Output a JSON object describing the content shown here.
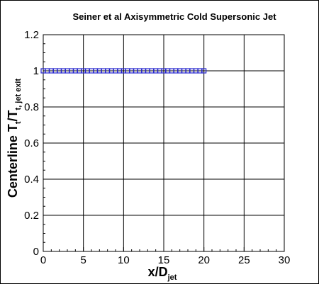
{
  "chart_data": {
    "type": "scatter",
    "title": "Seiner et al Axisymmetric Cold Supersonic Jet",
    "xlabel": {
      "main": "x/D",
      "sub": "jet"
    },
    "ylabel": {
      "main": "Centerline T",
      "sub1": "t",
      "mid": "/T",
      "sub2": "t, jet exit"
    },
    "xlim": [
      0,
      30
    ],
    "ylim": [
      0,
      1.2
    ],
    "xticks": [
      0,
      5,
      10,
      15,
      20,
      25,
      30
    ],
    "yticks": [
      0,
      0.2,
      0.4,
      0.6,
      0.8,
      1,
      1.2
    ],
    "xtick_labels": [
      "0",
      "5",
      "10",
      "15",
      "20",
      "25",
      "30"
    ],
    "ytick_labels": [
      "0",
      "0.2",
      "0.4",
      "0.6",
      "0.8",
      "1",
      "1.2"
    ],
    "grid": true,
    "series": [
      {
        "marker": "square",
        "color": "#2222cc",
        "x": [
          0,
          0.5,
          1,
          1.5,
          2,
          2.5,
          3,
          3.5,
          4,
          4.5,
          5,
          5.5,
          6,
          6.5,
          7,
          7.5,
          8,
          8.5,
          9,
          9.5,
          10,
          10.5,
          11,
          11.5,
          12,
          12.5,
          13,
          13.5,
          14,
          14.5,
          15,
          15.5,
          16,
          16.5,
          17,
          17.5,
          18,
          18.5,
          19,
          19.5,
          20
        ],
        "y": [
          1,
          1,
          1,
          1,
          1,
          1,
          1,
          1,
          1,
          1,
          1,
          1,
          1,
          1,
          1,
          1,
          1,
          1,
          1,
          1,
          1,
          1,
          1,
          1,
          1,
          1,
          1,
          1,
          1,
          1,
          1,
          1,
          1,
          1,
          1,
          1,
          1,
          1,
          1,
          1,
          1
        ]
      }
    ]
  }
}
